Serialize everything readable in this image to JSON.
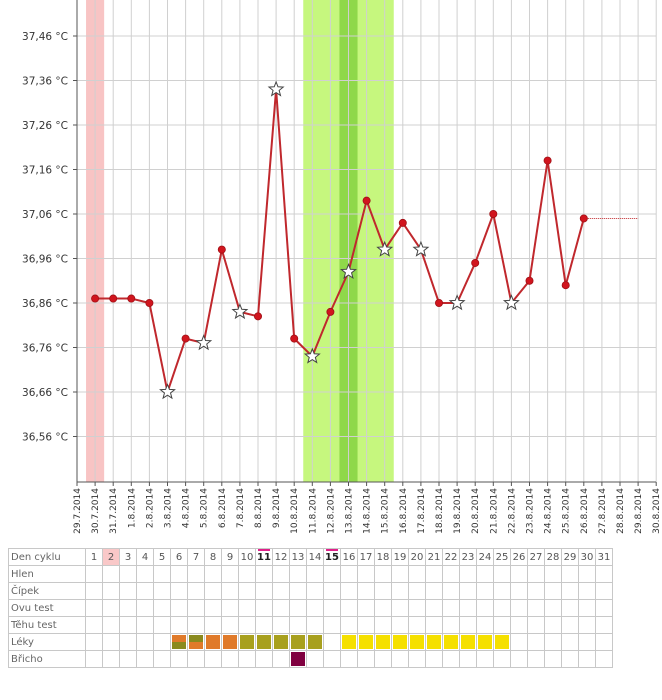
{
  "chart_data": {
    "type": "line",
    "y_unit": "°C",
    "ylim": [
      36.46,
      37.46
    ],
    "y_ticks": [
      "37,46 °C",
      "37,36 °C",
      "37,26 °C",
      "37,16 °C",
      "37,06 °C",
      "36,96 °C",
      "36,86 °C",
      "36,76 °C",
      "36,66 °C",
      "36,56 °C"
    ],
    "x_dates": [
      "29.7.2014",
      "30.7.2014",
      "31.7.2014",
      "1.8.2014",
      "2.8.2014",
      "3.8.2014",
      "4.8.2014",
      "5.8.2014",
      "6.8.2014",
      "7.8.2014",
      "8.8.2014",
      "9.8.2014",
      "10.8.2014",
      "11.8.2014",
      "12.8.2014",
      "13.8.2014",
      "14.8.2014",
      "15.8.2014",
      "16.8.2014",
      "17.8.2014",
      "18.8.2014",
      "19.8.2014",
      "20.8.2014",
      "21.8.2014",
      "22.8.2014",
      "23.8.2014",
      "24.8.2014",
      "25.8.2014",
      "26.8.2014",
      "27.8.2014",
      "28.8.2014",
      "29.8.2014",
      "30.8.2014"
    ],
    "grid": true,
    "series": [
      {
        "color": "#c0282d",
        "points": [
          {
            "x": "30.7.2014",
            "y": 36.87,
            "marker": "dot"
          },
          {
            "x": "31.7.2014",
            "y": 36.87,
            "marker": "dot"
          },
          {
            "x": "1.8.2014",
            "y": 36.87,
            "marker": "dot"
          },
          {
            "x": "2.8.2014",
            "y": 36.86,
            "marker": "dot"
          },
          {
            "x": "3.8.2014",
            "y": 36.66,
            "marker": "star"
          },
          {
            "x": "4.8.2014",
            "y": 36.78,
            "marker": "dot"
          },
          {
            "x": "5.8.2014",
            "y": 36.77,
            "marker": "star"
          },
          {
            "x": "6.8.2014",
            "y": 36.98,
            "marker": "dot"
          },
          {
            "x": "7.8.2014",
            "y": 36.84,
            "marker": "star"
          },
          {
            "x": "8.8.2014",
            "y": 36.83,
            "marker": "dot"
          },
          {
            "x": "9.8.2014",
            "y": 37.34,
            "marker": "star"
          },
          {
            "x": "10.8.2014",
            "y": 36.78,
            "marker": "dot"
          },
          {
            "x": "11.8.2014",
            "y": 36.74,
            "marker": "star"
          },
          {
            "x": "12.8.2014",
            "y": 36.84,
            "marker": "dot"
          },
          {
            "x": "13.8.2014",
            "y": 36.93,
            "marker": "star"
          },
          {
            "x": "14.8.2014",
            "y": 37.09,
            "marker": "dot"
          },
          {
            "x": "15.8.2014",
            "y": 36.98,
            "marker": "star"
          },
          {
            "x": "16.8.2014",
            "y": 37.04,
            "marker": "dot"
          },
          {
            "x": "17.8.2014",
            "y": 36.98,
            "marker": "star"
          },
          {
            "x": "18.8.2014",
            "y": 36.86,
            "marker": "dot"
          },
          {
            "x": "19.8.2014",
            "y": 36.86,
            "marker": "star"
          },
          {
            "x": "20.8.2014",
            "y": 36.95,
            "marker": "dot"
          },
          {
            "x": "21.8.2014",
            "y": 37.06,
            "marker": "dot"
          },
          {
            "x": "22.8.2014",
            "y": 36.86,
            "marker": "star"
          },
          {
            "x": "23.8.2014",
            "y": 36.91,
            "marker": "dot"
          },
          {
            "x": "24.8.2014",
            "y": 37.18,
            "marker": "dot"
          },
          {
            "x": "25.8.2014",
            "y": 36.9,
            "marker": "dot"
          },
          {
            "x": "26.8.2014",
            "y": 37.05,
            "marker": "dot"
          }
        ],
        "dotted_extension": {
          "from": "26.8.2014",
          "to": "29.8.2014",
          "y": 37.05
        }
      }
    ],
    "highlights": [
      {
        "from": "30.7.2014",
        "to": "30.7.2014",
        "color": "#f8c4c4"
      },
      {
        "from": "11.8.2014",
        "to": "15.8.2014",
        "color": "#c6f77e"
      },
      {
        "from": "13.8.2014",
        "to": "13.8.2014",
        "color": "#8fd84a"
      }
    ]
  },
  "cycle_table": {
    "rows": [
      "Den cyklu",
      "Hlen",
      "Čípek",
      "Ovu test",
      "Těhu test",
      "Léky",
      "Břicho"
    ],
    "days": [
      "1",
      "2",
      "3",
      "4",
      "5",
      "6",
      "7",
      "8",
      "9",
      "10",
      "11",
      "12",
      "13",
      "14",
      "15",
      "16",
      "17",
      "18",
      "19",
      "20",
      "21",
      "22",
      "23",
      "24",
      "25",
      "26",
      "27",
      "28",
      "29",
      "30",
      "31"
    ],
    "today_day": "2",
    "bold_days": [
      "11",
      "15"
    ],
    "leky": {
      "6": [
        "#e07a2a",
        "#8a8a1e"
      ],
      "7": [
        "#8a8a1e",
        "#e07a2a"
      ],
      "8": [
        "#e07a2a"
      ],
      "9": [
        "#e07a2a"
      ],
      "10": [
        "#a8a01e"
      ],
      "11": [
        "#a8a01e"
      ],
      "12": [
        "#a8a01e"
      ],
      "13": [
        "#a8a01e"
      ],
      "14": [
        "#a8a01e"
      ],
      "16": [
        "#f5e000"
      ],
      "17": [
        "#f5e000"
      ],
      "18": [
        "#f5e000"
      ],
      "19": [
        "#f5e000"
      ],
      "20": [
        "#f5e000"
      ],
      "21": [
        "#f5e000"
      ],
      "22": [
        "#f5e000"
      ],
      "23": [
        "#f5e000"
      ],
      "24": [
        "#f5e000"
      ],
      "25": [
        "#f5e000"
      ]
    },
    "bricho": {
      "13": "#800040"
    }
  }
}
